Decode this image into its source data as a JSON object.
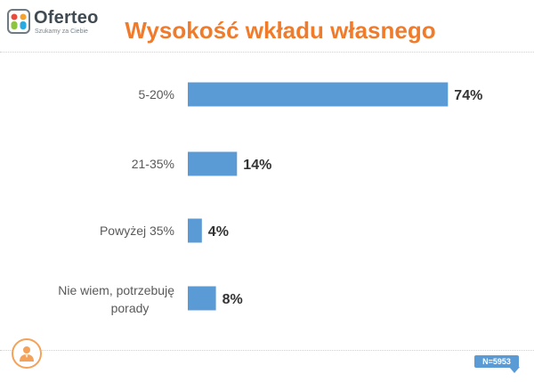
{
  "brand": {
    "name": "Oferteo",
    "tagline": "Szukamy za Ciebie",
    "logo_icon": "brand-logo-icon"
  },
  "footer": {
    "sample_size": "N=5953",
    "avatar_icon": "person-icon"
  },
  "colors": {
    "accent": "#F07B2A",
    "bar": "#5B9BD5",
    "badge": "#5B9BD5"
  },
  "chart_data": {
    "type": "bar",
    "orientation": "horizontal",
    "title": "Wysokość wkładu własnego",
    "categories": [
      "5-20%",
      "21-35%",
      "Powyżej 35%",
      "Nie wiem, potrzebuję porady"
    ],
    "values": [
      74,
      14,
      4,
      8
    ],
    "value_labels": [
      "74%",
      "14%",
      "4%",
      "8%"
    ],
    "xlim": [
      0,
      100
    ],
    "grid": false,
    "legend": false
  }
}
